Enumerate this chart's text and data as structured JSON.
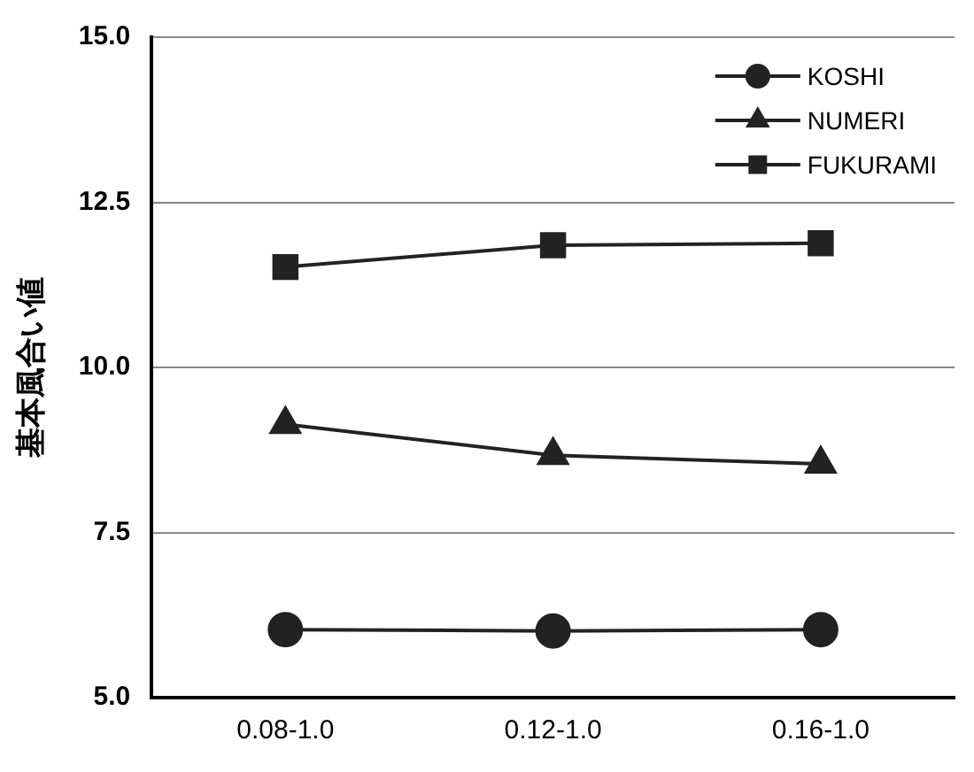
{
  "chart_data": {
    "type": "line",
    "ylabel": "基本風合い値",
    "categories": [
      "0.08-1.0",
      "0.12-1.0",
      "0.16-1.0"
    ],
    "series": [
      {
        "name": "KOSHI",
        "color": "#222222",
        "marker": "circle",
        "values": [
          6.03,
          6.01,
          6.03
        ]
      },
      {
        "name": "NUMERI",
        "color": "#222222",
        "marker": "triangle",
        "values": [
          9.14,
          8.67,
          8.54
        ]
      },
      {
        "name": "FUKURAMI",
        "color": "#222222",
        "marker": "square",
        "values": [
          11.52,
          11.85,
          11.88
        ]
      }
    ],
    "ylim": [
      5,
      15
    ],
    "yticks": [
      {
        "value": 5,
        "label": "5.0"
      },
      {
        "value": 7.5,
        "label": "7.5"
      },
      {
        "value": 10,
        "label": "10.0"
      },
      {
        "value": 12.5,
        "label": "12.5"
      },
      {
        "value": 15,
        "label": "15.0"
      }
    ],
    "grid": "y",
    "legend": "top right",
    "line_style": "solid"
  }
}
